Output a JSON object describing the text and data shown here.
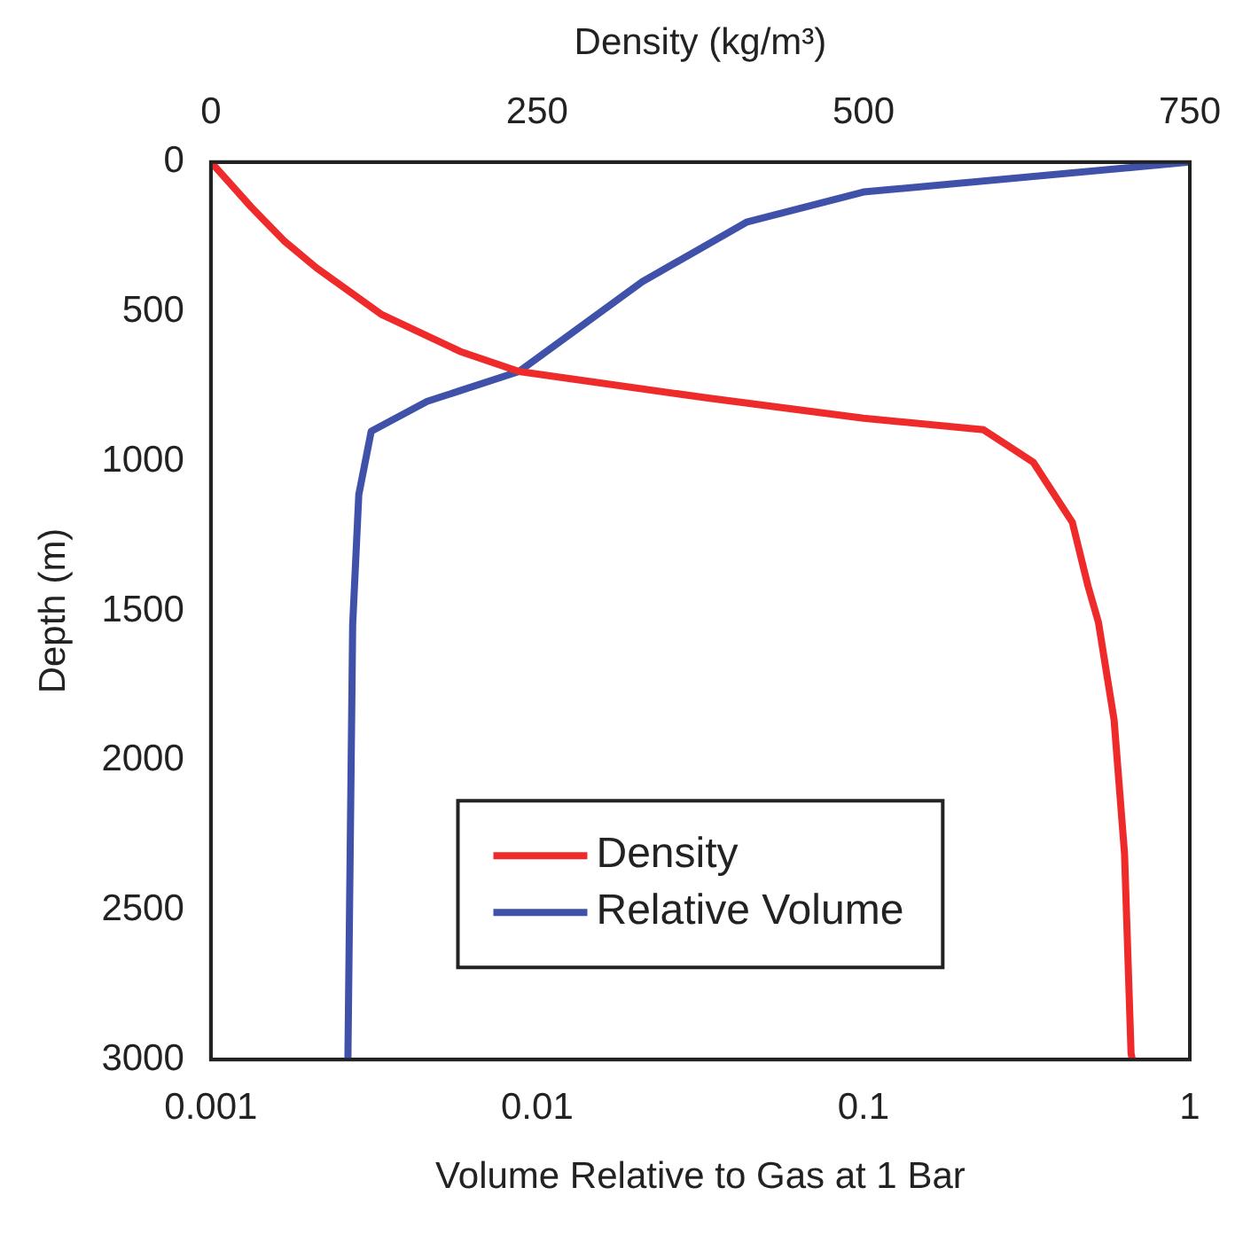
{
  "chart_data": {
    "type": "line",
    "xlabel": "Volume Relative to Gas at 1 Bar",
    "x2label": "Density (kg/m³)",
    "ylabel": "Depth (m)",
    "log": "x",
    "xlim": [
      0.001,
      1
    ],
    "xticks": [
      0.001,
      0.01,
      0.1,
      1
    ],
    "x2lim": [
      0,
      750
    ],
    "x2ticks": [
      0,
      250,
      500,
      750
    ],
    "ylim": [
      3000,
      0
    ],
    "yticks": [
      0,
      500,
      1000,
      1500,
      2000,
      2500,
      3000
    ],
    "grid": false,
    "legend": "bottom",
    "marker": "none",
    "line_style": "solid",
    "series": [
      {
        "name": "Density",
        "color": "#ee2a2a",
        "axis": "x2",
        "x": [
          0,
          31,
          56,
          81,
          131,
          191,
          236,
          381,
          500,
          592,
          630,
          660,
          672,
          680,
          692,
          700,
          705,
          706
        ],
        "values": [
          0,
          151,
          263,
          354,
          510,
          633,
          700,
          789,
          856,
          895,
          1003,
          1204,
          1417,
          1538,
          1865,
          2312,
          2980,
          3000
        ]
      },
      {
        "name": "Relative Volume",
        "color": "#3f51a8",
        "x": [
          1,
          0.1,
          0.044,
          0.021,
          0.0088,
          0.0046,
          0.0031,
          0.00284,
          0.00272,
          0.00263
        ],
        "values": [
          0,
          100,
          200,
          400,
          700,
          800,
          900,
          1112,
          1547,
          3000
        ]
      }
    ]
  }
}
